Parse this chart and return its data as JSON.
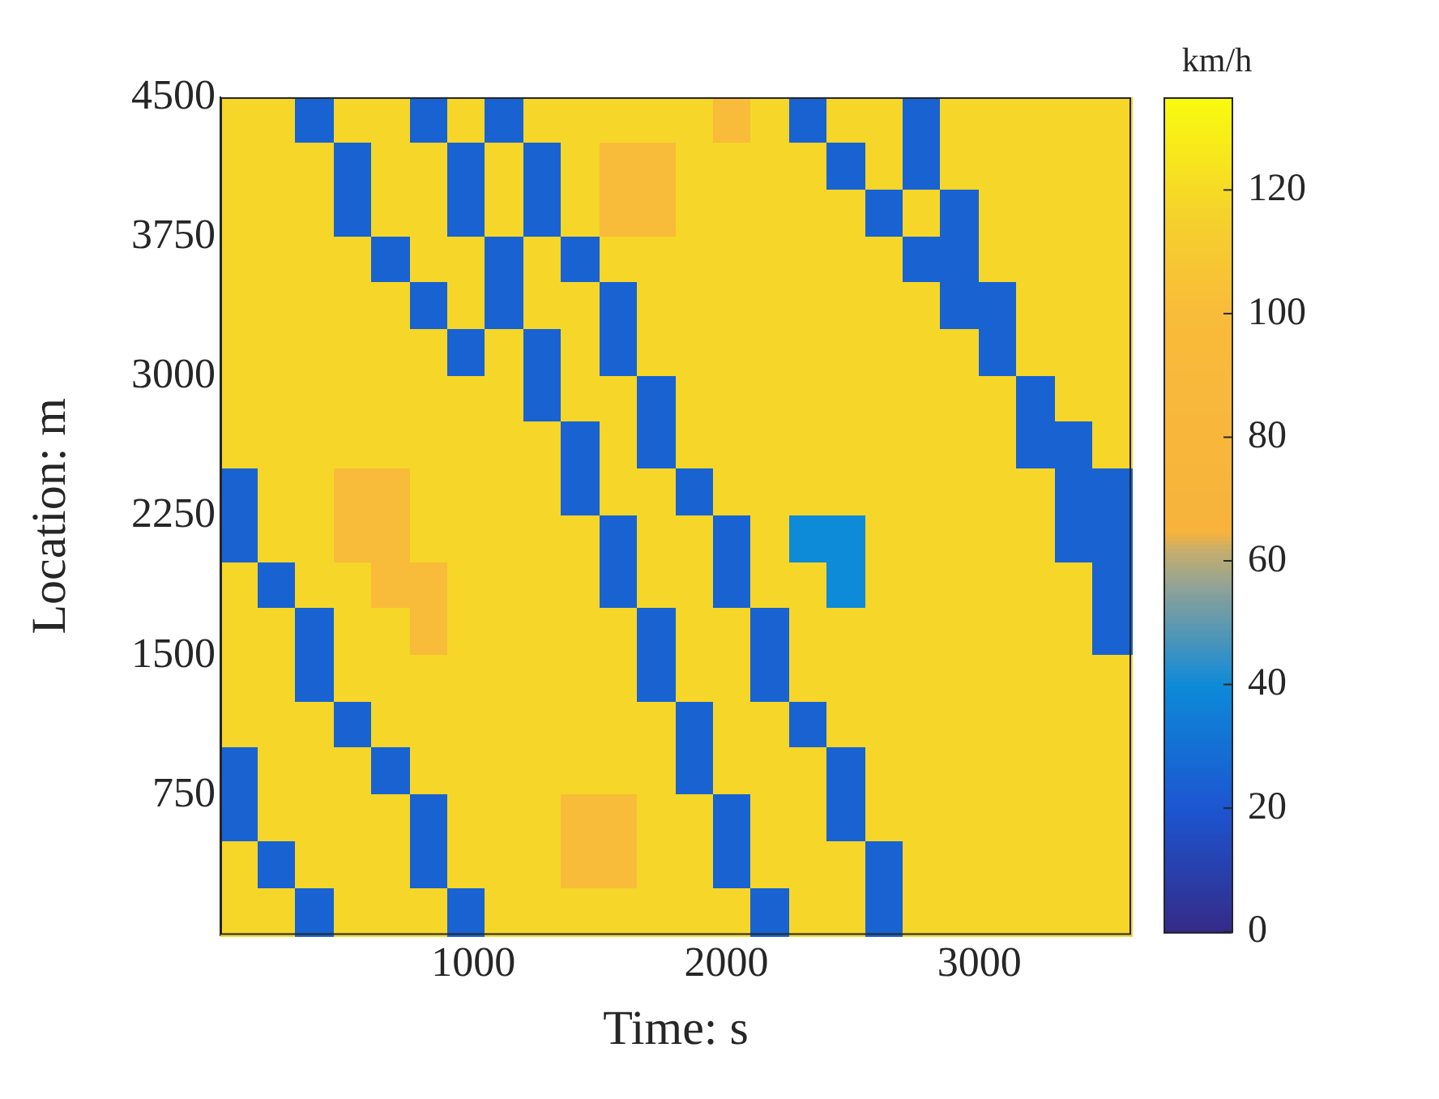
{
  "chart_data": {
    "type": "heatmap",
    "xlabel": "Time: s",
    "ylabel": "Location: m",
    "clabel": "km/h",
    "x": [
      75,
      225,
      375,
      525,
      675,
      825,
      975,
      1125,
      1275,
      1425,
      1575,
      1725,
      1875,
      2025,
      2175,
      2325,
      2475,
      2625,
      2775,
      2925,
      3075,
      3225,
      3375,
      3525
    ],
    "y": [
      4375,
      4125,
      3875,
      3625,
      3375,
      3125,
      2875,
      2625,
      2375,
      2125,
      1875,
      1625,
      1375,
      1125,
      875,
      625,
      375,
      125
    ],
    "xlim": [
      0,
      3600
    ],
    "xticks": [
      1000,
      2000,
      3000
    ],
    "ylim": [
      0,
      4500
    ],
    "yticks": [
      750,
      1500,
      2250,
      3000,
      3750,
      4500
    ],
    "clim": [
      0,
      135
    ],
    "cticks": [
      0,
      20,
      40,
      60,
      80,
      100,
      120
    ],
    "cells": [
      [
        118,
        118,
        25,
        118,
        118,
        25,
        118,
        25,
        118,
        118,
        118,
        118,
        118,
        100,
        118,
        25,
        118,
        118,
        25,
        118,
        118,
        118,
        118,
        118
      ],
      [
        118,
        118,
        118,
        25,
        118,
        118,
        25,
        118,
        25,
        118,
        100,
        100,
        118,
        118,
        118,
        118,
        25,
        118,
        25,
        118,
        118,
        118,
        118,
        118
      ],
      [
        118,
        118,
        118,
        25,
        118,
        118,
        25,
        118,
        25,
        118,
        100,
        100,
        118,
        118,
        118,
        118,
        118,
        25,
        118,
        25,
        118,
        118,
        118,
        118
      ],
      [
        118,
        118,
        118,
        118,
        25,
        118,
        118,
        25,
        118,
        25,
        118,
        118,
        118,
        118,
        118,
        118,
        118,
        118,
        25,
        25,
        118,
        118,
        118,
        118
      ],
      [
        118,
        118,
        118,
        118,
        118,
        25,
        118,
        25,
        118,
        118,
        25,
        118,
        118,
        118,
        118,
        118,
        118,
        118,
        118,
        25,
        25,
        118,
        118,
        118
      ],
      [
        118,
        118,
        118,
        118,
        118,
        118,
        25,
        118,
        25,
        118,
        25,
        118,
        118,
        118,
        118,
        118,
        118,
        118,
        118,
        118,
        25,
        118,
        118,
        118
      ],
      [
        118,
        118,
        118,
        118,
        118,
        118,
        118,
        118,
        25,
        118,
        118,
        25,
        118,
        118,
        118,
        118,
        118,
        118,
        118,
        118,
        118,
        25,
        118,
        118
      ],
      [
        118,
        118,
        118,
        118,
        118,
        118,
        118,
        118,
        118,
        25,
        118,
        25,
        118,
        118,
        118,
        118,
        118,
        118,
        118,
        118,
        118,
        25,
        25,
        118
      ],
      [
        25,
        118,
        118,
        100,
        100,
        118,
        118,
        118,
        118,
        25,
        118,
        118,
        25,
        118,
        118,
        118,
        118,
        118,
        118,
        118,
        118,
        118,
        25,
        25
      ],
      [
        25,
        118,
        118,
        100,
        100,
        118,
        118,
        118,
        118,
        118,
        25,
        118,
        118,
        25,
        118,
        40,
        40,
        118,
        118,
        118,
        118,
        118,
        25,
        25
      ],
      [
        118,
        25,
        118,
        118,
        100,
        100,
        118,
        118,
        118,
        118,
        25,
        118,
        118,
        25,
        118,
        118,
        40,
        118,
        118,
        118,
        118,
        118,
        118,
        25
      ],
      [
        118,
        118,
        25,
        118,
        118,
        100,
        118,
        118,
        118,
        118,
        118,
        25,
        118,
        118,
        25,
        118,
        118,
        118,
        118,
        118,
        118,
        118,
        118,
        25
      ],
      [
        118,
        118,
        25,
        118,
        118,
        118,
        118,
        118,
        118,
        118,
        118,
        25,
        118,
        118,
        25,
        118,
        118,
        118,
        118,
        118,
        118,
        118,
        118,
        118
      ],
      [
        118,
        118,
        118,
        25,
        118,
        118,
        118,
        118,
        118,
        118,
        118,
        118,
        25,
        118,
        118,
        25,
        118,
        118,
        118,
        118,
        118,
        118,
        118,
        118
      ],
      [
        25,
        118,
        118,
        118,
        25,
        118,
        118,
        118,
        118,
        118,
        118,
        118,
        25,
        118,
        118,
        118,
        25,
        118,
        118,
        118,
        118,
        118,
        118,
        118
      ],
      [
        25,
        118,
        118,
        118,
        118,
        25,
        118,
        118,
        118,
        100,
        100,
        118,
        118,
        25,
        118,
        118,
        25,
        118,
        118,
        118,
        118,
        118,
        118,
        118
      ],
      [
        118,
        25,
        118,
        118,
        118,
        25,
        118,
        118,
        118,
        100,
        100,
        118,
        118,
        25,
        118,
        118,
        118,
        25,
        118,
        118,
        118,
        118,
        118,
        118
      ],
      [
        118,
        118,
        25,
        118,
        118,
        118,
        25,
        118,
        118,
        118,
        118,
        118,
        118,
        118,
        25,
        118,
        118,
        25,
        118,
        118,
        118,
        118,
        118,
        118
      ]
    ]
  }
}
